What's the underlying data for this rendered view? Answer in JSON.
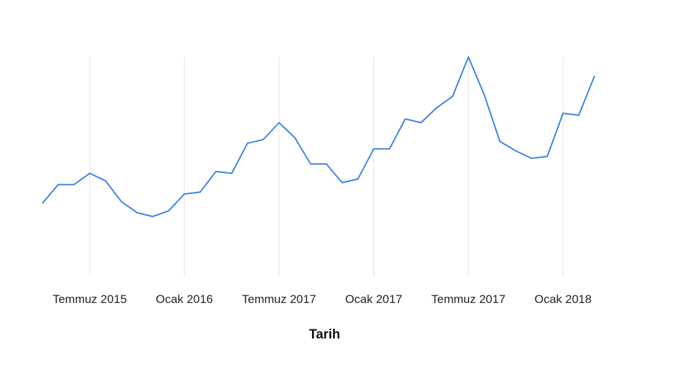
{
  "chart_data": {
    "type": "line",
    "title": "",
    "xlabel": "Tarih",
    "ylabel": "",
    "grid": {
      "vertical": true,
      "horizontal": false
    },
    "legend": "none",
    "line_color": "#3c82e6",
    "grid_color": "#e6e6e6",
    "tick_labels": [
      "Temmuz 2015",
      "Ocak 2016",
      "Temmuz 2017",
      "Ocak 2017",
      "Temmuz 2017",
      "Ocak 2018"
    ],
    "ylim": [
      0,
      100
    ],
    "series": [
      {
        "values": [
          22,
          32,
          32,
          38,
          34,
          23,
          17,
          15,
          18,
          27,
          28,
          39,
          38,
          54,
          56,
          65,
          57,
          43,
          43,
          33,
          35,
          51,
          51,
          67,
          65,
          73,
          79,
          100,
          80,
          55,
          50,
          46,
          47,
          70,
          69,
          90
        ]
      }
    ]
  }
}
